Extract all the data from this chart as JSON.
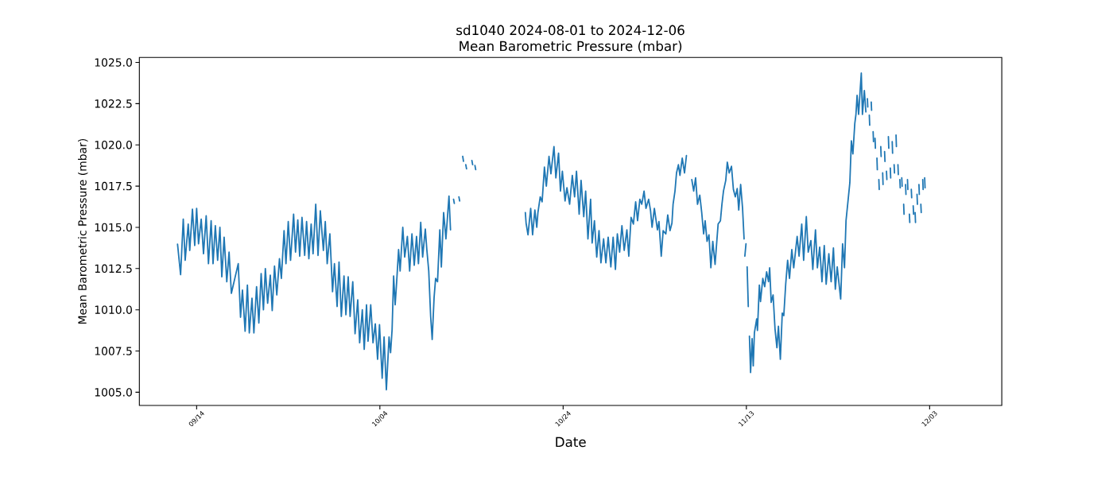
{
  "chart_data": {
    "type": "line",
    "title": "sd1040 2024-08-01 to 2024-12-06",
    "subtitle": "Mean Barometric Pressure (mbar)",
    "xlabel": "Date",
    "ylabel": "Mean Barometric Pressure (mbar)",
    "color": "#1f77b4",
    "line_style": "solid",
    "xlim": [
      "2024-09-07T18:00",
      "2024-12-10T21:00"
    ],
    "ylim": [
      1004.2,
      1025.3
    ],
    "xticks": [
      {
        "value": "2024-09-14",
        "label": "09/14"
      },
      {
        "value": "2024-10-04",
        "label": "10/04"
      },
      {
        "value": "2024-10-24",
        "label": "10/24"
      },
      {
        "value": "2024-11-13",
        "label": "11/13"
      },
      {
        "value": "2024-12-03",
        "label": "12/03"
      }
    ],
    "yticks": [
      {
        "value": 1005,
        "label": "1005.0"
      },
      {
        "value": 1007.5,
        "label": "1007.5"
      },
      {
        "value": 1010,
        "label": "1010.0"
      },
      {
        "value": 1012.5,
        "label": "1012.5"
      },
      {
        "value": 1015,
        "label": "1015.0"
      },
      {
        "value": 1017.5,
        "label": "1017.5"
      },
      {
        "value": 1020,
        "label": "1020.0"
      },
      {
        "value": 1022.5,
        "label": "1022.5"
      },
      {
        "value": 1025,
        "label": "1025.0"
      }
    ],
    "x": [
      "2024-09-11T22:00",
      "2024-09-12T06:00",
      "2024-09-12T13:00",
      "2024-09-12T18:00",
      "2024-09-13T02:00",
      "2024-09-13T06:00",
      "2024-09-13T13:00",
      "2024-09-13T19:00",
      "2024-09-14T00:00",
      "2024-09-14T05:00",
      "2024-09-14T12:00",
      "2024-09-14T18:00",
      "2024-09-15T01:00",
      "2024-09-15T07:00",
      "2024-09-15T14:00",
      "2024-09-15T19:00",
      "2024-09-16T01:00",
      "2024-09-16T07:00",
      "2024-09-16T13:00",
      "2024-09-16T18:00",
      "2024-09-17T00:00",
      "2024-09-17T07:00",
      "2024-09-17T13:00",
      "2024-09-17T19:00",
      "2024-09-18T13:00",
      "2024-09-18T19:00",
      "2024-09-19T00:00",
      "2024-09-19T07:00",
      "2024-09-19T13:00",
      "2024-09-19T18:00",
      "2024-09-20T01:00",
      "2024-09-20T06:00",
      "2024-09-20T13:00",
      "2024-09-20T19:00",
      "2024-09-21T01:00",
      "2024-09-21T07:00",
      "2024-09-21T12:00",
      "2024-09-21T18:00",
      "2024-09-22T01:00",
      "2024-09-22T06:00",
      "2024-09-22T12:00",
      "2024-09-22T18:00",
      "2024-09-23T01:00",
      "2024-09-23T06:00",
      "2024-09-23T13:00",
      "2024-09-23T18:00",
      "2024-09-24T00:00",
      "2024-09-24T06:00",
      "2024-09-24T14:00",
      "2024-09-24T19:00",
      "2024-09-25T01:00",
      "2024-09-25T06:00",
      "2024-09-25T12:00",
      "2024-09-25T19:00",
      "2024-09-26T00:00",
      "2024-09-26T06:00",
      "2024-09-26T12:00",
      "2024-09-26T17:00",
      "2024-09-27T00:00",
      "2024-09-27T06:00",
      "2024-09-27T12:00",
      "2024-09-27T20:00",
      "2024-09-28T01:00",
      "2024-09-28T06:00",
      "2024-09-28T13:00",
      "2024-09-28T20:00",
      "2024-09-29T01:00",
      "2024-09-29T08:00",
      "2024-09-29T13:00",
      "2024-09-29T19:00",
      "2024-09-30T02:00",
      "2024-09-30T07:00",
      "2024-09-30T13:00",
      "2024-09-30T18:00",
      "2024-10-01T01:00",
      "2024-10-01T07:00",
      "2024-10-01T14:00",
      "2024-10-01T19:00",
      "2024-10-02T02:00",
      "2024-10-02T07:00",
      "2024-10-02T13:00",
      "2024-10-02T17:00",
      "2024-10-03T00:00",
      "2024-10-03T06:00",
      "2024-10-03T12:00",
      "2024-10-03T18:00",
      "2024-10-03T23:00",
      "2024-10-04T06:00",
      "2024-10-04T11:00",
      "2024-10-04T17:00",
      "2024-10-05T00:00",
      "2024-10-05T04:00",
      "2024-10-05T08:00",
      "2024-10-05T12:00",
      "2024-10-05T16:00",
      "2024-10-05T20:00",
      "2024-10-06T01:00",
      "2024-10-06T05:00",
      "2024-10-06T12:00",
      "2024-10-06T17:00",
      "2024-10-07T00:00",
      "2024-10-07T06:00",
      "2024-10-07T12:00",
      "2024-10-07T18:00",
      "2024-10-08T00:00",
      "2024-10-08T05:00",
      "2024-10-08T11:00",
      "2024-10-08T16:00",
      "2024-10-08T23:00",
      "2024-10-09T03:00",
      "2024-10-09T08:00",
      "2024-10-09T13:00",
      "2024-10-09T17:00",
      "2024-10-09T22:00",
      "2024-10-10T02:00",
      "2024-10-10T07:00",
      "2024-10-10T13:00",
      "2024-10-10T17:00",
      "2024-10-10T23:00",
      "2024-10-11T05:00",
      "2024-10-11T13:00",
      "2024-10-11T17:00",
      "2024-10-11T21:00",
      "2024-10-12T01:00",
      "2024-10-12T03:00",
      "2024-10-12T08:00",
      "2024-10-12T15:00",
      "2024-10-12T17:00",
      "2024-10-12T20:00",
      "2024-10-13T01:00",
      "2024-10-13T03:00",
      "2024-10-13T06:00",
      "2024-10-13T09:00",
      "2024-10-13T11:00",
      "2024-10-13T18:00",
      "2024-10-14T01:00",
      "2024-10-14T03:00",
      "2024-10-14T06:00",
      "2024-10-14T09:00",
      "2024-10-14T11:00",
      "2024-10-17T00:00",
      "2024-10-19T21:00",
      "2024-10-19T23:00",
      "2024-10-20T04:00",
      "2024-10-20T11:00",
      "2024-10-20T16:00",
      "2024-10-20T22:00",
      "2024-10-21T03:00",
      "2024-10-21T06:00",
      "2024-10-21T12:00",
      "2024-10-21T17:00",
      "2024-10-21T23:00",
      "2024-10-22T04:00",
      "2024-10-22T11:00",
      "2024-10-22T16:00",
      "2024-10-23T00:00",
      "2024-10-23T05:00",
      "2024-10-23T12:00",
      "2024-10-23T17:00",
      "2024-10-23T22:00",
      "2024-10-24T05:00",
      "2024-10-24T10:00",
      "2024-10-24T17:00",
      "2024-10-25T00:00",
      "2024-10-25T06:00",
      "2024-10-25T11:00",
      "2024-10-25T18:00",
      "2024-10-25T23:00",
      "2024-10-26T06:00",
      "2024-10-26T11:00",
      "2024-10-26T17:00",
      "2024-10-27T00:00",
      "2024-10-27T04:00",
      "2024-10-27T10:00",
      "2024-10-27T16:00",
      "2024-10-27T22:00",
      "2024-10-28T03:00",
      "2024-10-28T10:00",
      "2024-10-28T16:00",
      "2024-10-28T22:00",
      "2024-10-29T05:00",
      "2024-10-29T11:00",
      "2024-10-29T17:00",
      "2024-10-29T22:00",
      "2024-10-30T04:00",
      "2024-10-30T10:00",
      "2024-10-30T16:00",
      "2024-10-30T23:00",
      "2024-10-31T04:00",
      "2024-10-31T10:00",
      "2024-10-31T16:00",
      "2024-10-31T22:00",
      "2024-11-01T03:00",
      "2024-11-01T09:00",
      "2024-11-01T14:00",
      "2024-11-01T20:00",
      "2024-11-02T01:00",
      "2024-11-02T08:00",
      "2024-11-02T13:00",
      "2024-11-02T17:00",
      "2024-11-02T23:00",
      "2024-11-03T07:00",
      "2024-11-03T11:00",
      "2024-11-03T17:00",
      "2024-11-03T22:00",
      "2024-11-04T05:00",
      "2024-11-04T10:00",
      "2024-11-04T16:00",
      "2024-11-04T21:00",
      "2024-11-05T00:00",
      "2024-11-05T05:00",
      "2024-11-05T09:00",
      "2024-11-05T14:00",
      "2024-11-05T18:00",
      "2024-11-06T00:00",
      "2024-11-06T06:00",
      "2024-11-06T11:00",
      "2024-11-06T18:00",
      "2024-11-07T01:00",
      "2024-11-07T06:00",
      "2024-11-07T11:00",
      "2024-11-07T16:00",
      "2024-11-07T22:00",
      "2024-11-08T03:00",
      "2024-11-08T08:00",
      "2024-11-08T12:00",
      "2024-11-08T17:00",
      "2024-11-08T22:00",
      "2024-11-09T03:00",
      "2024-11-09T08:00",
      "2024-11-09T14:00",
      "2024-11-09T19:00",
      "2024-11-09T22:00",
      "2024-11-10T04:00",
      "2024-11-10T08:00",
      "2024-11-10T12:00",
      "2024-11-10T18:00",
      "2024-11-10T22:00",
      "2024-11-11T03:00",
      "2024-11-11T09:00",
      "2024-11-11T14:00",
      "2024-11-11T19:00",
      "2024-11-12T00:00",
      "2024-11-12T04:00",
      "2024-11-12T09:00",
      "2024-11-12T14:00",
      "2024-11-12T18:00",
      "2024-11-12T19:00",
      "2024-11-12T20:00",
      "2024-11-12T23:00",
      "2024-11-13T01:00",
      "2024-11-13T02:00",
      "2024-11-13T05:00",
      "2024-11-13T07:00",
      "2024-11-13T08:00",
      "2024-11-13T11:00",
      "2024-11-13T15:00",
      "2024-11-13T18:00",
      "2024-11-13T21:00",
      "2024-11-14T03:00",
      "2024-11-14T05:00",
      "2024-11-14T10:00",
      "2024-11-14T13:00",
      "2024-11-14T19:00",
      "2024-11-15T00:00",
      "2024-11-15T05:00",
      "2024-11-15T10:00",
      "2024-11-15T13:00",
      "2024-11-15T17:00",
      "2024-11-15T22:00",
      "2024-11-16T03:00",
      "2024-11-16T08:00",
      "2024-11-16T12:00",
      "2024-11-16T17:00",
      "2024-11-16T22:00",
      "2024-11-17T02:00",
      "2024-11-17T07:00",
      "2024-11-17T12:00",
      "2024-11-17T17:00",
      "2024-11-17T23:00",
      "2024-11-18T04:00",
      "2024-11-18T13:00",
      "2024-11-18T18:00",
      "2024-11-19T01:00",
      "2024-11-19T06:00",
      "2024-11-19T13:00",
      "2024-11-19T18:00",
      "2024-11-20T01:00",
      "2024-11-20T06:00",
      "2024-11-20T13:00",
      "2024-11-20T18:00",
      "2024-11-21T00:00",
      "2024-11-21T06:00",
      "2024-11-21T12:00",
      "2024-11-21T17:00",
      "2024-11-22T00:00",
      "2024-11-22T06:00",
      "2024-11-22T12:00",
      "2024-11-22T17:00",
      "2024-11-22T22:00",
      "2024-11-23T07:00",
      "2024-11-23T12:00",
      "2024-11-23T17:00",
      "2024-11-23T21:00",
      "2024-11-24T02:00",
      "2024-11-24T07:00",
      "2024-11-24T11:00",
      "2024-11-24T15:00",
      "2024-11-24T20:00",
      "2024-11-24T23:00",
      "2024-11-25T02:00",
      "2024-11-25T06:00",
      "2024-11-25T10:00",
      "2024-11-25T13:00",
      "2024-11-25T16:00",
      "2024-11-25T21:00",
      "2024-11-26T01:00",
      "2024-11-26T03:00",
      "2024-11-26T05:00",
      "2024-11-26T06:00",
      "2024-11-26T08:00",
      "2024-11-26T10:00",
      "2024-11-26T11:00",
      "2024-11-26T13:00",
      "2024-11-26T15:00",
      "2024-11-26T16:00",
      "2024-11-26T18:00",
      "2024-11-26T20:00",
      "2024-11-26T21:00",
      "2024-11-26T23:00",
      "2024-11-27T01:00",
      "2024-11-27T02:00",
      "2024-11-27T04:00",
      "2024-11-27T06:00",
      "2024-11-27T07:00",
      "2024-11-27T09:00",
      "2024-11-27T11:00",
      "2024-11-27T12:00",
      "2024-11-27T14:00",
      "2024-11-27T16:00",
      "2024-11-27T17:00",
      "2024-11-27T19:00",
      "2024-11-27T21:00",
      "2024-11-27T22:00",
      "2024-11-28T00:00",
      "2024-11-28T02:00",
      "2024-11-28T03:00",
      "2024-11-28T05:00",
      "2024-11-28T07:00",
      "2024-11-28T08:00",
      "2024-11-28T10:00",
      "2024-11-28T12:00",
      "2024-11-28T13:00",
      "2024-11-28T15:00",
      "2024-11-28T17:00",
      "2024-11-28T18:00",
      "2024-11-28T20:00",
      "2024-11-28T22:00",
      "2024-11-28T23:00",
      "2024-11-29T01:00",
      "2024-11-29T03:00",
      "2024-11-29T04:00",
      "2024-11-29T06:00",
      "2024-11-29T08:00",
      "2024-11-29T09:00",
      "2024-11-29T11:00",
      "2024-11-29T13:00",
      "2024-11-29T14:00",
      "2024-11-29T16:00",
      "2024-11-29T18:00",
      "2024-11-29T19:00",
      "2024-11-29T21:00",
      "2024-11-29T23:00",
      "2024-11-30T00:00",
      "2024-11-30T02:00",
      "2024-11-30T04:00",
      "2024-11-30T05:00",
      "2024-11-30T07:00",
      "2024-11-30T09:00",
      "2024-11-30T10:00",
      "2024-11-30T12:00",
      "2024-11-30T14:00",
      "2024-11-30T15:00",
      "2024-11-30T17:00",
      "2024-11-30T19:00",
      "2024-11-30T20:00",
      "2024-11-30T22:00",
      "2024-12-01T00:00",
      "2024-12-01T01:00",
      "2024-12-01T03:00",
      "2024-12-01T05:00",
      "2024-12-01T06:00",
      "2024-12-01T08:00",
      "2024-12-01T10:00",
      "2024-12-01T11:00",
      "2024-12-01T13:00",
      "2024-12-01T15:00",
      "2024-12-01T16:00",
      "2024-12-01T18:00",
      "2024-12-01T20:00",
      "2024-12-01T21:00",
      "2024-12-01T23:00",
      "2024-12-02T01:00",
      "2024-12-02T02:00",
      "2024-12-02T04:00",
      "2024-12-02T06:00",
      "2024-12-02T07:00",
      "2024-12-02T09:00",
      "2024-12-02T11:00",
      "2024-12-02T12:00"
    ],
    "values": [
      1013.98,
      1012.13,
      1015.5,
      1013.0,
      1015.2,
      1013.6,
      1016.1,
      1013.9,
      1016.15,
      1014.0,
      1015.5,
      1013.4,
      1015.7,
      1012.8,
      1015.4,
      1012.8,
      1015.1,
      1013.0,
      1015.0,
      1012.0,
      1014.4,
      1011.7,
      1013.5,
      1011.0,
      1012.8,
      1009.55,
      1011.2,
      1008.7,
      1011.5,
      1008.6,
      1010.7,
      1008.6,
      1011.4,
      1009.2,
      1012.2,
      1010.0,
      1012.5,
      1010.4,
      1012.1,
      1009.95,
      1012.65,
      1010.9,
      1013.1,
      1011.9,
      1014.8,
      1012.8,
      1015.35,
      1013.0,
      1015.8,
      1013.5,
      1015.45,
      1013.25,
      1015.6,
      1013.3,
      1015.35,
      1013.1,
      1015.2,
      1013.4,
      1016.4,
      1013.3,
      1016.0,
      1013.6,
      1015.35,
      1012.8,
      1014.6,
      1011.1,
      1012.8,
      1010.2,
      1012.9,
      1009.6,
      1012.05,
      1009.7,
      1012.0,
      1009.6,
      1011.7,
      1008.55,
      1010.6,
      1008.0,
      1010.0,
      1007.6,
      1010.3,
      1008.1,
      1010.3,
      1008.0,
      1009.15,
      1007.0,
      1009.1,
      1005.85,
      1008.35,
      1005.15,
      1008.35,
      1007.4,
      1008.8,
      1012.05,
      1010.3,
      1011.7,
      1013.65,
      1012.35,
      1015.0,
      1013.2,
      1014.45,
      1012.35,
      1014.6,
      1012.7,
      1014.45,
      1012.8,
      1015.3,
      1013.2,
      1014.9,
      1013.65,
      1012.35,
      1009.6,
      1008.2,
      1010.75,
      1011.9,
      1011.7,
      1014.85,
      1012.6,
      1015.9,
      1014.3,
      1016.9,
      1014.85,
      null,
      1016.7,
      1016.45,
      null,
      1016.85,
      1016.6,
      null,
      1019.3,
      1019.0,
      null,
      1018.8,
      1018.55,
      null,
      1019.05,
      1018.8,
      null,
      1018.75,
      1018.5,
      null,
      1015.9,
      1015.25,
      1014.55,
      1016.15,
      1014.55,
      1016.05,
      1015.0,
      1015.9,
      1016.85,
      1016.55,
      1018.65,
      1017.5,
      1019.3,
      1018.25,
      1019.9,
      1018.0,
      1019.5,
      1017.2,
      1018.4,
      1016.6,
      1017.4,
      1016.4,
      1018.15,
      1016.85,
      1018.4,
      1015.8,
      1017.85,
      1015.65,
      1017.2,
      1014.3,
      1016.7,
      1014.05,
      1015.4,
      1013.2,
      1014.8,
      1012.85,
      1014.3,
      1012.85,
      1014.4,
      1012.6,
      1014.4,
      1012.45,
      1014.6,
      1013.5,
      1015.1,
      1013.6,
      1014.85,
      1013.25,
      1015.6,
      1015.2,
      1016.55,
      1015.4,
      1016.7,
      1016.4,
      1017.2,
      1016.15,
      1016.7,
      1016.0,
      1015.0,
      1016.15,
      1014.85,
      1015.35,
      1013.25,
      1014.8,
      1014.6,
      1015.75,
      1014.8,
      1015.25,
      1016.4,
      1017.2,
      1018.3,
      1018.8,
      1018.15,
      1019.2,
      1018.3,
      1019.35,
      null,
      1017.9,
      1017.2,
      1018.0,
      1016.4,
      1016.95,
      1015.9,
      1014.6,
      1015.4,
      1014.15,
      1014.55,
      1012.55,
      1014.15,
      1012.75,
      1014.3,
      1015.2,
      1015.4,
      1016.4,
      1017.2,
      1017.85,
      1018.95,
      1018.3,
      1018.7,
      1017.3,
      1016.85,
      1017.35,
      1016.05,
      1017.6,
      1016.15,
      1014.3,
      null,
      1013.25,
      1014.0,
      null,
      1012.6,
      1010.2,
      null,
      1008.4,
      1006.2,
      1008.25,
      1006.6,
      1008.6,
      1009.45,
      1008.75,
      1011.5,
      1010.5,
      1011.9,
      1011.4,
      1012.3,
      1011.7,
      1012.55,
      1010.45,
      1010.9,
      1008.85,
      1007.7,
      1009.0,
      1007.0,
      1009.8,
      1009.65,
      1011.55,
      1013.0,
      1011.9,
      1013.65,
      1012.55,
      1014.45,
      1013.25,
      1015.2,
      1013.0,
      1015.65,
      1013.5,
      1014.2,
      1012.45,
      1014.85,
      1012.55,
      1013.8,
      1011.7,
      1013.9,
      1011.55,
      1013.4,
      1011.7,
      1013.75,
      1011.25,
      1012.6,
      1010.65,
      1014.0,
      1012.55,
      1015.4,
      1016.55,
      1017.7,
      1020.25,
      1019.45,
      1021.3,
      1021.85,
      1023.0,
      1021.85,
      1023.3,
      1024.35,
      1021.85,
      1023.3,
      1022.0,
      null,
      1022.8,
      1022.3,
      null,
      1021.8,
      1021.2,
      null,
      1022.6,
      1022.1,
      null,
      1020.8,
      1020.2,
      null,
      1020.4,
      1019.8,
      null,
      1019.2,
      1018.5,
      null,
      1017.9,
      1017.3,
      null,
      1019.9,
      1019.3,
      null,
      1018.3,
      1017.6,
      null,
      1019.6,
      1019.0,
      null,
      1018.4,
      1017.9,
      null,
      1020.5,
      1019.8,
      null,
      1018.6,
      1018.0,
      null,
      1020.2,
      1019.5,
      null,
      1018.8,
      1018.3,
      null,
      1020.6,
      1019.9,
      null,
      1018.8,
      1018.2,
      null,
      1017.9,
      1017.4,
      null,
      1018.0,
      1017.5,
      null,
      1016.4,
      1015.8,
      null,
      1017.6,
      1017.0,
      null,
      1017.9,
      1017.3,
      null,
      1015.8,
      1015.3,
      null,
      1017.3,
      1016.8,
      null,
      1016.3,
      1015.8,
      null,
      1015.9,
      1015.3,
      null,
      1017.0,
      1016.4,
      null,
      1017.6,
      1017.0,
      null,
      1016.4,
      1015.9,
      null,
      1017.9,
      1017.3,
      null,
      1018.0,
      1017.4
    ]
  }
}
